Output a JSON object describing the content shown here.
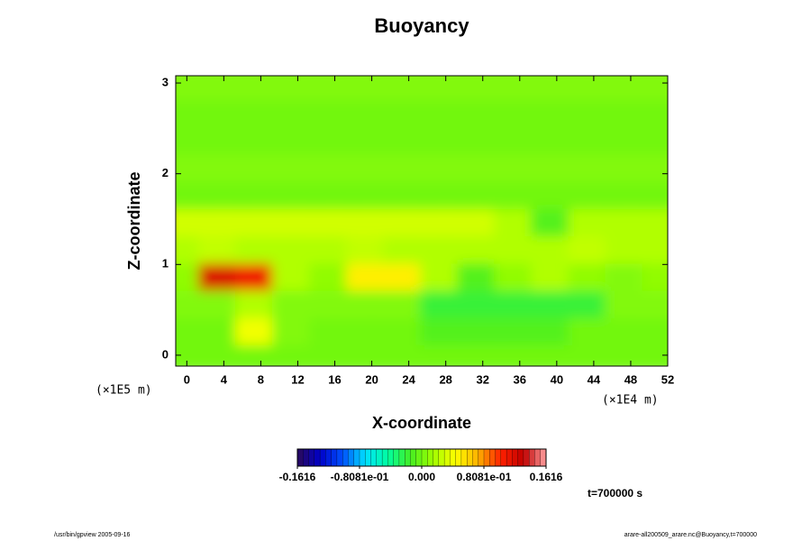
{
  "chart_data": {
    "type": "heatmap",
    "title": "Buoyancy",
    "x_label": "X-coordinate",
    "y_label": "Z-coordinate",
    "x_unit": "(×1E4 m)",
    "y_unit": "(×1E5 m)",
    "xlim": [
      -1.2,
      52
    ],
    "ylim": [
      -0.12,
      3.08
    ],
    "xticks": [
      0,
      4,
      8,
      12,
      16,
      20,
      24,
      28,
      32,
      36,
      40,
      44,
      48,
      52
    ],
    "yticks": [
      0,
      1,
      2,
      3
    ],
    "x": [
      0,
      4,
      8,
      12,
      16,
      20,
      24,
      28,
      32,
      36,
      40,
      44,
      48,
      52
    ],
    "z": [
      0,
      0.3,
      0.6,
      0.9,
      1.2,
      1.5,
      1.8,
      2.1,
      2.4,
      2.7,
      3.0
    ],
    "values": [
      [
        0,
        0,
        0,
        0,
        0,
        0,
        0,
        0,
        0,
        0,
        0,
        0,
        0,
        0
      ],
      [
        0,
        0,
        0.04,
        0.005,
        0,
        0,
        0,
        -0.01,
        -0.01,
        -0.01,
        -0.01,
        0,
        0,
        0
      ],
      [
        0.005,
        0.005,
        0.02,
        0.005,
        0.005,
        0.005,
        0.005,
        -0.02,
        -0.02,
        -0.02,
        -0.02,
        -0.02,
        0.005,
        0.005
      ],
      [
        0.01,
        0.12,
        0.11,
        0.02,
        0.01,
        0.05,
        0.05,
        0.02,
        -0.01,
        0.01,
        0.02,
        0.01,
        0.005,
        0.01
      ],
      [
        0.02,
        0.025,
        0.02,
        0.02,
        0.02,
        0.025,
        0.02,
        0.02,
        0.02,
        0.02,
        0.02,
        0.025,
        0.02,
        0.02
      ],
      [
        0.03,
        0.03,
        0.03,
        0.03,
        0.03,
        0.03,
        0.03,
        0.03,
        0.03,
        0.02,
        -0.01,
        0.02,
        0.02,
        0.02
      ],
      [
        0,
        0,
        0,
        0,
        0,
        0,
        0,
        0,
        0,
        0,
        0,
        0,
        0,
        0
      ],
      [
        0.005,
        0.005,
        0.005,
        0.005,
        0.005,
        0.005,
        0.005,
        0.005,
        0.005,
        0.005,
        0.005,
        0.005,
        0.005,
        0.005
      ],
      [
        0,
        0,
        0,
        0,
        0,
        0,
        0,
        0,
        0,
        0,
        0,
        0,
        0,
        0
      ],
      [
        0,
        0,
        0,
        0,
        0,
        0,
        0,
        0,
        0,
        0,
        0,
        0,
        0,
        0
      ],
      [
        0.005,
        0.005,
        0.005,
        0.005,
        0.005,
        0.005,
        0.005,
        0.005,
        0.005,
        0.005,
        0.005,
        0.005,
        0.005,
        0.005
      ]
    ],
    "clim": [
      -0.1616,
      0.1616
    ],
    "colormap": [
      "#2a0a5a",
      "#0000c8",
      "#0050ff",
      "#00e0ff",
      "#00ffa0",
      "#44ee22",
      "#a0ff00",
      "#ffff00",
      "#ffb000",
      "#ff2000",
      "#c00000",
      "#ffa0a0"
    ],
    "colorbar_ticks": [
      -0.1616,
      {
        "value": -0.08081,
        "label": "-0.8081e-01"
      },
      {
        "value": 0,
        "label": "0.000"
      },
      {
        "value": 0.08081,
        "label": "0.8081e-01"
      },
      0.1616
    ],
    "time_label": "t=700000 s",
    "footer_left": "/usr/bin/gpview 2005-09-16",
    "footer_right": "arare-all200509_arare.nc@Buoyancy,t=700000"
  }
}
